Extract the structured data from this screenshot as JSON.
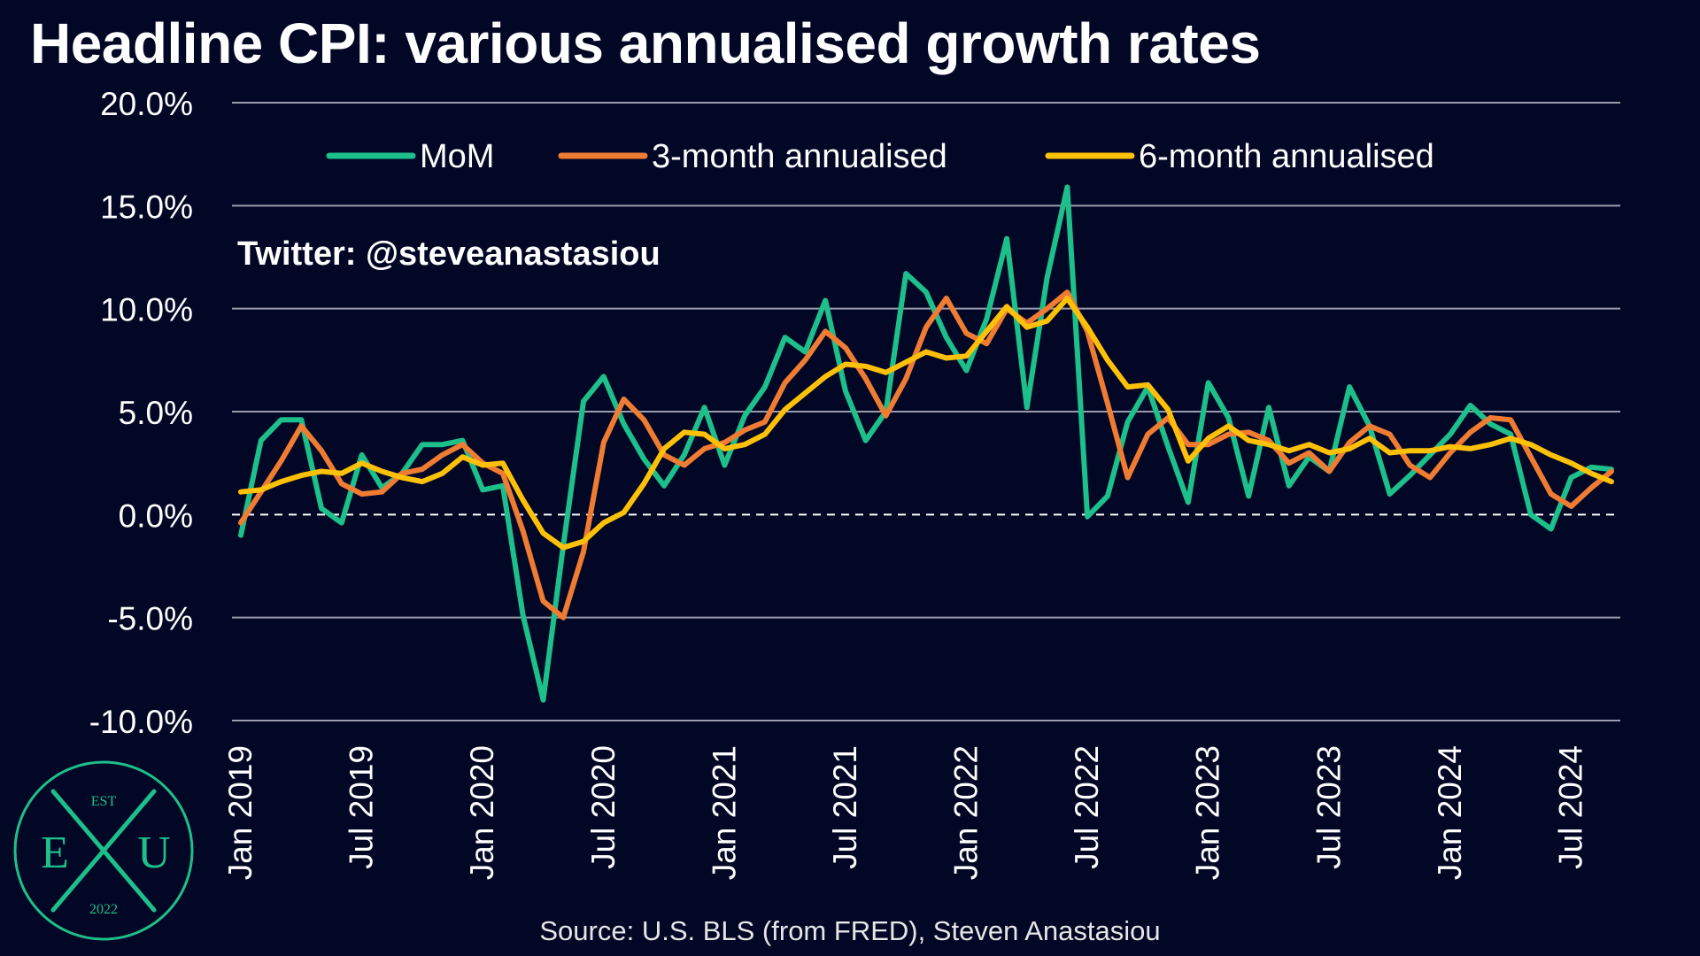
{
  "header": {
    "title": "Headline CPI: various annualised growth rates",
    "twitter": "Twitter: @steveanastasiou",
    "source": "Source: U.S. BLS (from FRED), Steven Anastasiou"
  },
  "logo": {
    "top": "EST",
    "left": "E",
    "right": "U",
    "bottom": "2022",
    "icon": "exu-crossed-quills-logo"
  },
  "colors": {
    "background": "#030726",
    "grid": "#9a9cae",
    "mom": "#1dbf8a",
    "three_month": "#ef7c32",
    "six_month": "#ffc107",
    "zero_line": "#ffffff"
  },
  "chart_data": {
    "type": "line",
    "title": "Headline CPI: various annualised growth rates",
    "ylim": [
      -10,
      20
    ],
    "yticks": [
      -10,
      -5,
      0,
      5,
      10,
      15,
      20
    ],
    "ytick_labels": [
      "-10.0%",
      "-5.0%",
      "0.0%",
      "5.0%",
      "10.0%",
      "15.0%",
      "20.0%"
    ],
    "xtick_labels": [
      "Jan 2019",
      "Jul 2019",
      "Jan 2020",
      "Jul 2020",
      "Jan 2021",
      "Jul 2021",
      "Jan 2022",
      "Jul 2022",
      "Jan 2023",
      "Jul 2023",
      "Jan 2024",
      "Jul 2024"
    ],
    "xtick_index": [
      0,
      6,
      12,
      18,
      24,
      30,
      36,
      42,
      48,
      54,
      60,
      66
    ],
    "legend_position": "top",
    "grid": true,
    "zero_line_dashed": true,
    "series": [
      {
        "name": "MoM",
        "values": [
          -1.0,
          3.6,
          4.6,
          4.6,
          0.3,
          -0.4,
          2.9,
          1.3,
          2.0,
          3.4,
          3.4,
          3.6,
          1.2,
          1.4,
          -4.9,
          -9.0,
          -1.5,
          5.5,
          6.7,
          4.4,
          2.7,
          1.4,
          2.9,
          5.2,
          2.4,
          4.8,
          6.2,
          8.6,
          7.9,
          10.4,
          6.0,
          3.6,
          5.0,
          11.7,
          10.8,
          8.6,
          7.0,
          9.5,
          13.4,
          5.2,
          11.5,
          15.9,
          -0.1,
          0.9,
          4.5,
          6.2,
          3.3,
          0.6,
          6.4,
          4.7,
          0.9,
          5.2,
          1.4,
          2.8,
          2.1,
          6.2,
          4.3,
          1.0,
          1.9,
          2.9,
          3.9,
          5.3,
          4.4,
          3.9,
          0.0,
          -0.7,
          1.8,
          2.3,
          2.2
        ]
      },
      {
        "name": "3-month annualised",
        "values": [
          -0.4,
          1.1,
          2.6,
          4.3,
          3.1,
          1.5,
          1.0,
          1.1,
          2.0,
          2.2,
          2.9,
          3.4,
          2.5,
          2.0,
          -0.8,
          -4.2,
          -5.0,
          -1.8,
          3.5,
          5.6,
          4.6,
          2.9,
          2.4,
          3.2,
          3.5,
          4.1,
          4.5,
          6.4,
          7.5,
          8.9,
          8.1,
          6.6,
          4.8,
          6.6,
          9.1,
          10.5,
          8.8,
          8.3,
          10.0,
          9.3,
          10.0,
          10.8,
          8.9,
          5.4,
          1.8,
          3.9,
          4.7,
          3.4,
          3.4,
          3.9,
          4.0,
          3.6,
          2.5,
          3.0,
          2.1,
          3.5,
          4.3,
          3.9,
          2.4,
          1.8,
          3.0,
          4.0,
          4.7,
          4.6,
          2.8,
          1.0,
          0.4,
          1.3,
          2.1
        ]
      },
      {
        "name": "6-month annualised",
        "values": [
          1.1,
          1.2,
          1.6,
          1.9,
          2.1,
          2.0,
          2.5,
          2.1,
          1.8,
          1.6,
          2.0,
          2.8,
          2.4,
          2.5,
          0.7,
          -0.9,
          -1.6,
          -1.3,
          -0.4,
          0.1,
          1.5,
          3.2,
          4.0,
          3.9,
          3.2,
          3.4,
          3.9,
          5.1,
          5.9,
          6.7,
          7.3,
          7.2,
          6.9,
          7.4,
          7.9,
          7.6,
          7.7,
          8.9,
          10.1,
          9.1,
          9.4,
          10.5,
          9.1,
          7.5,
          6.2,
          6.3,
          5.1,
          2.6,
          3.7,
          4.3,
          3.6,
          3.4,
          3.1,
          3.4,
          3.0,
          3.2,
          3.7,
          3.0,
          3.1,
          3.1,
          3.3,
          3.2,
          3.4,
          3.7,
          3.4,
          2.9,
          2.5,
          2.0,
          1.6
        ]
      }
    ]
  }
}
